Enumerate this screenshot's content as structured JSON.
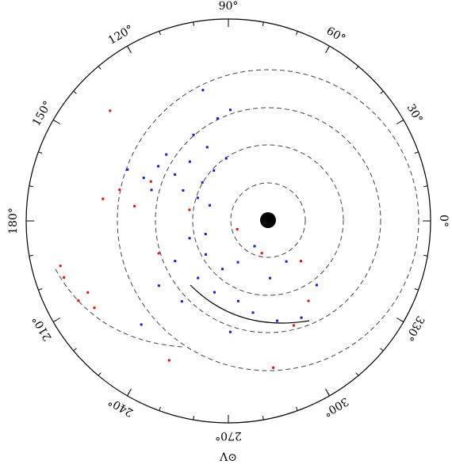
{
  "chart_data": {
    "type": "polar-scatter",
    "x_label": "Λ⊙",
    "rlim": [
      0,
      1
    ],
    "thetaticks": [
      {
        "value": 0,
        "label": "0°"
      },
      {
        "value": 30,
        "label": "30°"
      },
      {
        "value": 60,
        "label": "60°"
      },
      {
        "value": 90,
        "label": "90°"
      },
      {
        "value": 120,
        "label": "120°"
      },
      {
        "value": 150,
        "label": "150°"
      },
      {
        "value": 180,
        "label": "180°"
      },
      {
        "value": 210,
        "label": "210°"
      },
      {
        "value": 240,
        "label": "240°"
      },
      {
        "value": 270,
        "label": "270°"
      },
      {
        "value": 300,
        "label": "300°"
      },
      {
        "value": 330,
        "label": "330°"
      }
    ],
    "series": [
      {
        "color": "#1a1ad0",
        "theta": [
          153,
          153,
          142,
          139,
          123,
          124,
          106,
          92,
          143,
          140,
          146,
          158,
          133,
          106,
          96,
          101,
          89,
          112,
          204,
          236,
          263,
          283,
          242,
          259,
          277,
          285,
          296,
          307,
          217,
          223,
          240,
          306,
          316,
          325,
          271,
          230,
          210,
          324
        ],
        "r": [
          0.56,
          0.47,
          0.44,
          0.35,
          0.35,
          0.23,
          0.26,
          0.31,
          0.19,
          0.12,
          0.27,
          0.41,
          0.45,
          0.38,
          0.51,
          0.66,
          0.55,
          0.46,
          0.21,
          0.2,
          0.24,
          0.21,
          0.32,
          0.36,
          0.4,
          0.47,
          0.55,
          0.6,
          0.33,
          0.47,
          0.46,
          0.35,
          0.18,
          0.35,
          0.55,
          0.67,
          0.13,
          0.54
        ]
      },
      {
        "color": "#dd1111",
        "theta": [
          170,
          164,
          171,
          153,
          137,
          199,
          208,
          213,
          195,
          207,
          316,
          331,
          315,
          287,
          164,
          205,
          247,
          302,
          317
        ],
        "r": [
          0.63,
          0.56,
          0.47,
          0.43,
          0.8,
          0.86,
          0.84,
          0.79,
          0.86,
          0.78,
          0.23,
          0.41,
          0.56,
          0.76,
          0.2,
          0.38,
          0.75,
          0.61,
          0.06
        ]
      }
    ]
  }
}
